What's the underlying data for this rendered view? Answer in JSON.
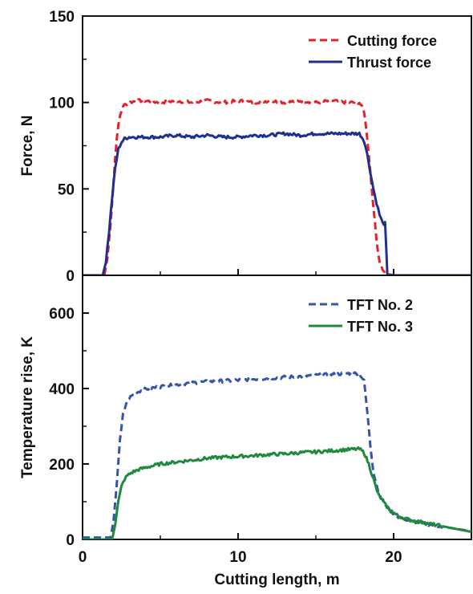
{
  "chart_data": [
    {
      "type": "line",
      "panel": "top",
      "title": "",
      "xlabel": "",
      "ylabel": "Force, N",
      "xlim": [
        0,
        25
      ],
      "ylim": [
        0,
        150
      ],
      "yticks": [
        "0",
        "50",
        "100",
        "150"
      ],
      "legend_position": "top-right",
      "series": [
        {
          "name": "Cutting force",
          "style": "dashed",
          "color": "#e8202a",
          "x": [
            0,
            1.4,
            1.6,
            1.8,
            2.0,
            2.2,
            2.4,
            2.6,
            3.0,
            3.5,
            4,
            5,
            6,
            7,
            8,
            9,
            10,
            11,
            12,
            13,
            14,
            15,
            16,
            17,
            17.8,
            18.1,
            18.3,
            18.5,
            18.7,
            18.9,
            19.1,
            19.3,
            19.5,
            20,
            22,
            25
          ],
          "y": [
            0,
            0,
            10,
            30,
            55,
            80,
            92,
            98,
            100,
            101,
            101,
            100,
            101,
            100,
            101,
            100,
            101,
            100,
            101,
            100,
            101,
            100,
            101,
            100,
            100,
            95,
            80,
            60,
            40,
            20,
            8,
            3,
            1,
            0,
            0,
            0
          ]
        },
        {
          "name": "Thrust force",
          "style": "solid",
          "color": "#1f2f8f",
          "x": [
            0,
            1.3,
            1.5,
            1.7,
            1.9,
            2.1,
            2.3,
            2.5,
            2.7,
            3.0,
            4,
            5,
            6,
            7,
            8,
            9,
            10,
            11,
            12,
            13,
            14,
            15,
            16,
            17,
            17.8,
            18.1,
            18.3,
            18.5,
            18.7,
            18.9,
            19.1,
            19.3,
            19.45,
            19.6,
            20,
            22,
            25
          ],
          "y": [
            0,
            0,
            8,
            25,
            45,
            62,
            73,
            77,
            79,
            80,
            80,
            80,
            81,
            80,
            81,
            80,
            80,
            81,
            81,
            82,
            81,
            82,
            82,
            82,
            82,
            78,
            70,
            60,
            50,
            42,
            35,
            30,
            30,
            0,
            0,
            0,
            0
          ]
        }
      ]
    },
    {
      "type": "line",
      "panel": "bottom",
      "title": "",
      "xlabel": "Cutting length, m",
      "ylabel": "Temperature rise, K",
      "xlim": [
        0,
        25
      ],
      "ylim": [
        0,
        700
      ],
      "xticks": [
        "0",
        "10",
        "20"
      ],
      "yticks": [
        "0",
        "200",
        "400",
        "600"
      ],
      "legend_position": "top-right",
      "series": [
        {
          "name": "TFT No. 2",
          "style": "dashed",
          "color": "#3355aa",
          "x": [
            0,
            1.8,
            2.0,
            2.2,
            2.4,
            2.6,
            2.8,
            3.0,
            3.3,
            3.6,
            4,
            5,
            6,
            7,
            8,
            9,
            10,
            11,
            12,
            13,
            14,
            15,
            16,
            17,
            17.8,
            18.1,
            18.3,
            18.5,
            18.7,
            19.0,
            19.4,
            19.8,
            20.3,
            21,
            22,
            23,
            24,
            25
          ],
          "y": [
            5,
            5,
            50,
            150,
            260,
            330,
            360,
            375,
            385,
            392,
            398,
            405,
            410,
            415,
            418,
            420,
            422,
            425,
            427,
            430,
            432,
            435,
            437,
            440,
            440,
            420,
            340,
            250,
            180,
            130,
            95,
            75,
            60,
            50,
            42,
            35,
            28,
            22
          ]
        },
        {
          "name": "TFT No. 3",
          "style": "solid",
          "color": "#1e8a3c",
          "x": [
            0,
            1.9,
            2.1,
            2.3,
            2.5,
            2.7,
            2.9,
            3.2,
            3.6,
            4,
            5,
            6,
            7,
            8,
            9,
            10,
            11,
            12,
            13,
            14,
            15,
            16,
            17,
            17.8,
            18.1,
            18.4,
            18.7,
            19.0,
            19.4,
            19.8,
            20.3,
            21,
            22,
            23,
            24,
            25
          ],
          "y": [
            0,
            0,
            40,
            100,
            140,
            160,
            170,
            178,
            185,
            190,
            200,
            205,
            210,
            215,
            218,
            220,
            222,
            225,
            227,
            230,
            232,
            235,
            238,
            240,
            230,
            200,
            160,
            120,
            95,
            75,
            62,
            52,
            44,
            36,
            28,
            20
          ]
        }
      ]
    }
  ]
}
